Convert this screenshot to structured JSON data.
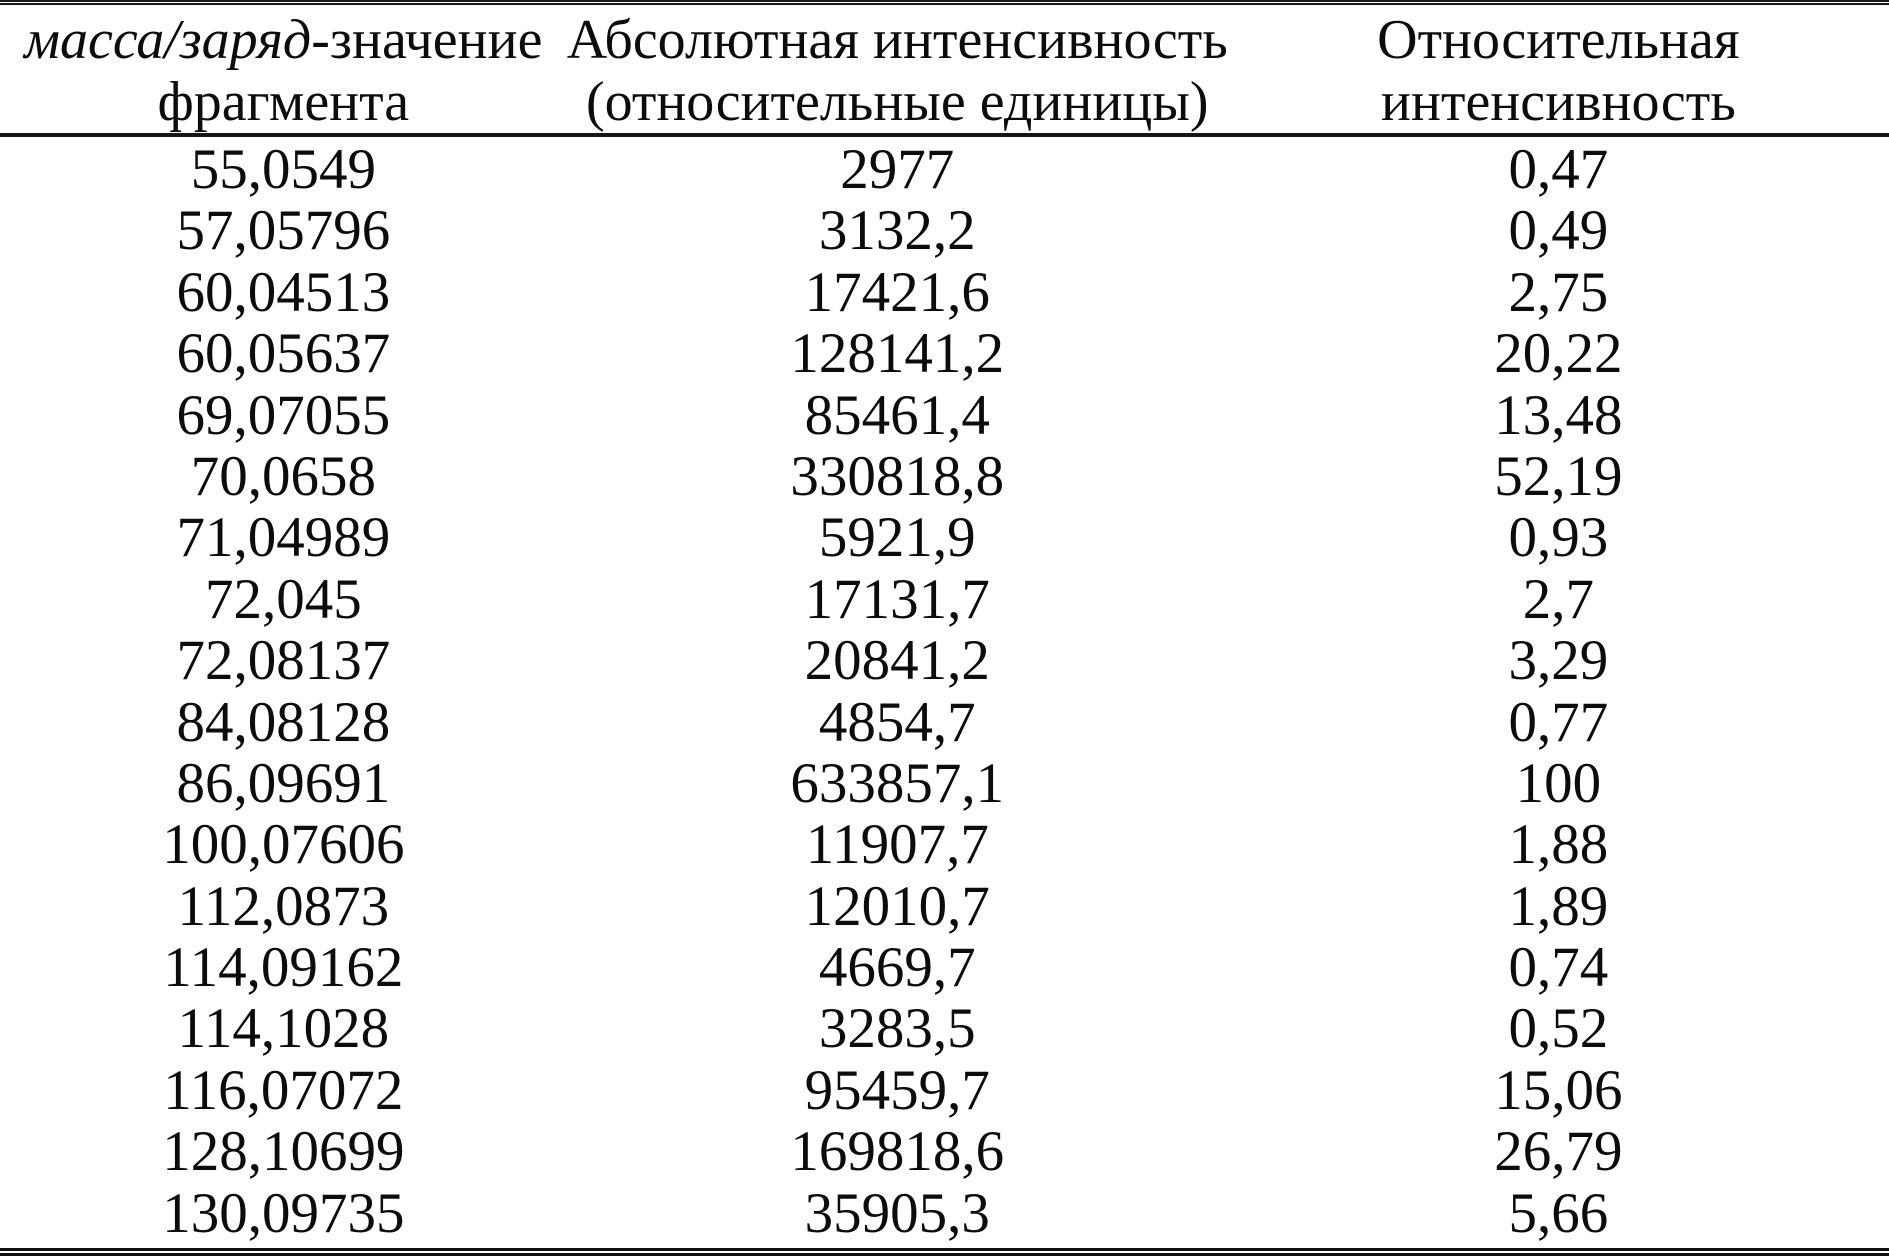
{
  "table": {
    "header": {
      "col1": {
        "line1_italic": "масса/заряд",
        "line1_rest": "-значение",
        "line2": "фрагмента"
      },
      "col2": {
        "line1": "Абсолютная интенсивность",
        "line2": "(относительные единицы)"
      },
      "col3": {
        "line1": "Относительная",
        "line2": "интенсивность"
      }
    },
    "rows": [
      [
        "55,0549",
        "2977",
        "0,47"
      ],
      [
        "57,05796",
        "3132,2",
        "0,49"
      ],
      [
        "60,04513",
        "17421,6",
        "2,75"
      ],
      [
        "60,05637",
        "128141,2",
        "20,22"
      ],
      [
        "69,07055",
        "85461,4",
        "13,48"
      ],
      [
        "70,0658",
        "330818,8",
        "52,19"
      ],
      [
        "71,04989",
        "5921,9",
        "0,93"
      ],
      [
        "72,045",
        "17131,7",
        "2,7"
      ],
      [
        "72,08137",
        "20841,2",
        "3,29"
      ],
      [
        "84,08128",
        "4854,7",
        "0,77"
      ],
      [
        "86,09691",
        "633857,1",
        "100"
      ],
      [
        "100,07606",
        "11907,7",
        "1,88"
      ],
      [
        "112,0873",
        "12010,7",
        "1,89"
      ],
      [
        "114,09162",
        "4669,7",
        "0,74"
      ],
      [
        "114,1028",
        "3283,5",
        "0,52"
      ],
      [
        "116,07072",
        "95459,7",
        "15,06"
      ],
      [
        "128,10699",
        "169818,6",
        "26,79"
      ],
      [
        "130,09735",
        "35905,3",
        "5,66"
      ]
    ]
  }
}
